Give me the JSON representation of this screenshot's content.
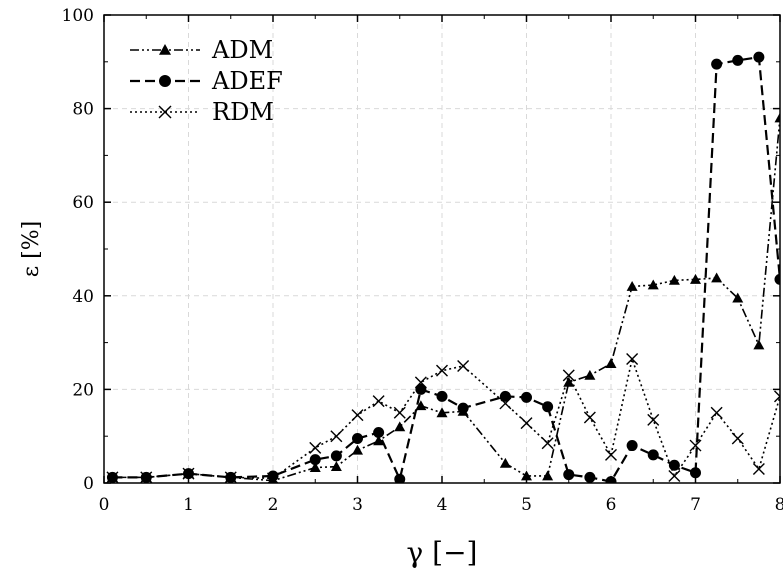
{
  "chart_data": {
    "type": "line",
    "xlabel": "γ [−]",
    "ylabel": "ε [%]",
    "xlim": [
      0,
      8
    ],
    "ylim": [
      0,
      100
    ],
    "xticks": [
      0,
      1,
      2,
      3,
      4,
      5,
      6,
      7,
      8
    ],
    "yticks": [
      0,
      20,
      40,
      60,
      80,
      100
    ],
    "grid": true,
    "legend_position": "top-left",
    "series": [
      {
        "name": "ADM",
        "marker": "triangle",
        "line_style": "dash-dot-dot",
        "x": [
          0.1,
          0.5,
          1,
          1.5,
          2,
          2.5,
          2.75,
          3,
          3.25,
          3.5,
          3.75,
          4,
          4.25,
          4.75,
          5,
          5.25,
          5.5,
          5.75,
          6,
          6.25,
          6.5,
          6.75,
          7,
          7.25,
          7.5,
          7.75,
          8
        ],
        "y": [
          1.2,
          1.2,
          2.0,
          1.2,
          0.5,
          3.3,
          3.5,
          7.0,
          9.0,
          12.0,
          16.5,
          15.0,
          15.3,
          4.2,
          1.5,
          1.5,
          21.5,
          23.0,
          25.5,
          42.0,
          42.3,
          43.3,
          43.5,
          43.8,
          39.5,
          29.5,
          78.0
        ]
      },
      {
        "name": "ADEF",
        "marker": "circle",
        "line_style": "dashed",
        "x": [
          0.1,
          0.5,
          1,
          1.5,
          2,
          2.5,
          2.75,
          3,
          3.25,
          3.5,
          3.75,
          4,
          4.25,
          4.75,
          5,
          5.25,
          5.5,
          5.75,
          6,
          6.25,
          6.5,
          6.75,
          7,
          7.25,
          7.5,
          7.75,
          8
        ],
        "y": [
          1.2,
          1.2,
          2.0,
          1.2,
          1.5,
          5.0,
          5.8,
          9.5,
          10.8,
          0.8,
          20.0,
          18.5,
          16.0,
          18.5,
          18.3,
          16.3,
          1.8,
          1.2,
          0.3,
          8.0,
          6.0,
          3.8,
          2.2,
          89.5,
          90.3,
          91.0,
          43.5
        ]
      },
      {
        "name": "RDM",
        "marker": "cross",
        "line_style": "dotted",
        "x": [
          0.1,
          0.5,
          1,
          1.5,
          2,
          2.5,
          2.75,
          3,
          3.25,
          3.5,
          3.75,
          4,
          4.25,
          4.75,
          5,
          5.25,
          5.5,
          5.75,
          6,
          6.25,
          6.5,
          6.75,
          7,
          7.25,
          7.5,
          7.75,
          8
        ],
        "y": [
          1.2,
          1.2,
          2.0,
          1.2,
          1.0,
          7.5,
          10.0,
          14.5,
          17.5,
          15.0,
          21.5,
          24.0,
          25.0,
          17.0,
          12.8,
          8.5,
          23.0,
          14.0,
          6.0,
          26.5,
          13.5,
          1.5,
          8.0,
          15.0,
          9.5,
          3.0,
          18.5
        ]
      }
    ]
  }
}
